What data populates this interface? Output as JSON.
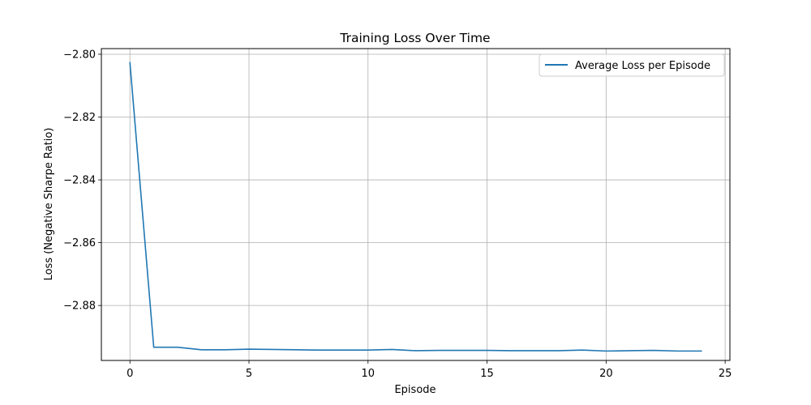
{
  "chart_data": {
    "type": "line",
    "title": "Training Loss Over Time",
    "xlabel": "Episode",
    "ylabel": "Loss (Negative Sharpe Ratio)",
    "xlim": [
      -1.2,
      25.2
    ],
    "ylim": [
      -2.8975,
      -2.7982
    ],
    "xticks": [
      0,
      5,
      10,
      15,
      20,
      25
    ],
    "xtick_labels": [
      "0",
      "5",
      "10",
      "15",
      "20",
      "25"
    ],
    "yticks": [
      -2.8,
      -2.82,
      -2.84,
      -2.86,
      -2.88
    ],
    "ytick_labels": [
      "−2.80",
      "−2.82",
      "−2.84",
      "−2.86",
      "−2.88"
    ],
    "grid": true,
    "legend_position": "top-right",
    "series": [
      {
        "name": "Average Loss per Episode",
        "color": "#1f77b4",
        "x": [
          0,
          1,
          2,
          3,
          4,
          5,
          6,
          7,
          8,
          9,
          10,
          11,
          12,
          13,
          14,
          15,
          16,
          17,
          18,
          19,
          20,
          21,
          22,
          23,
          24
        ],
        "y": [
          -2.8027,
          -2.8933,
          -2.8933,
          -2.8941,
          -2.8941,
          -2.8939,
          -2.894,
          -2.8941,
          -2.8942,
          -2.8942,
          -2.8942,
          -2.894,
          -2.8944,
          -2.8943,
          -2.8943,
          -2.8943,
          -2.8944,
          -2.8944,
          -2.8944,
          -2.8942,
          -2.8945,
          -2.8944,
          -2.8943,
          -2.8945,
          -2.8945
        ]
      }
    ]
  }
}
